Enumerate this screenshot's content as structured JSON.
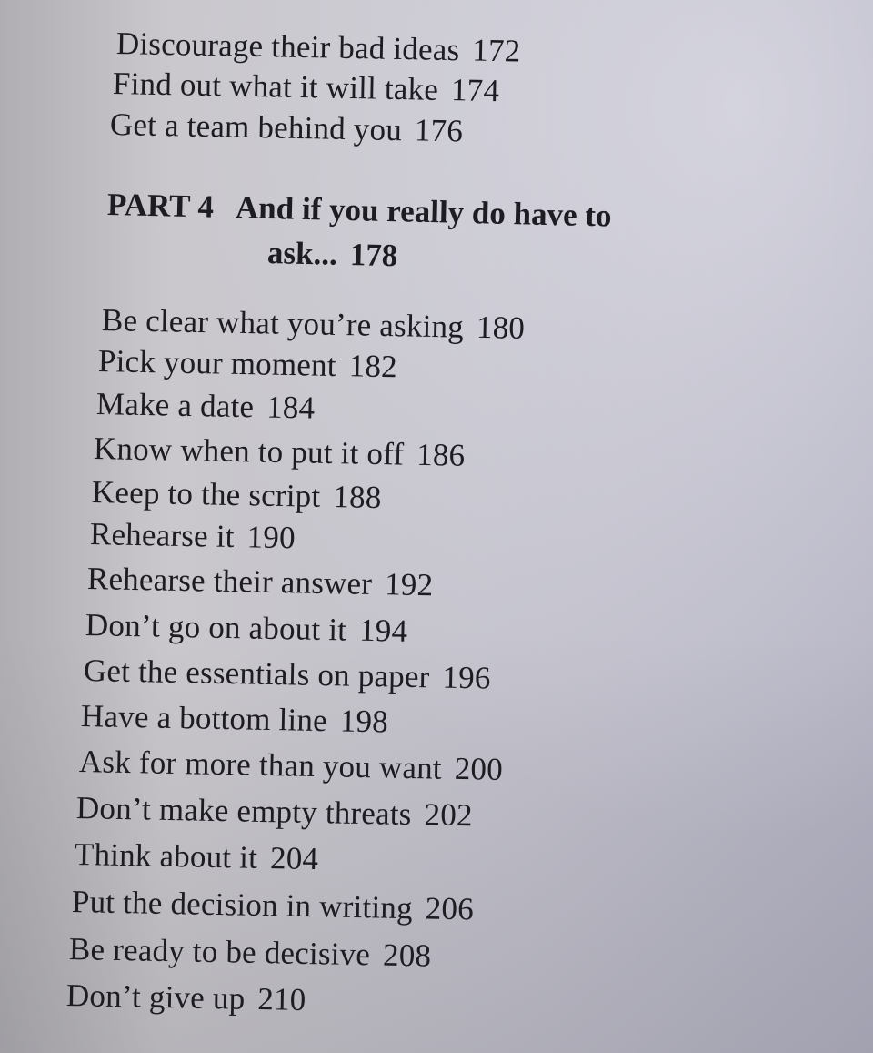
{
  "previous_entries": [
    {
      "title": "Discourage their bad ideas",
      "page": "172"
    },
    {
      "title": "Find out what it will take",
      "page": "174"
    },
    {
      "title": "Get a team behind you",
      "page": "176"
    }
  ],
  "part": {
    "number": "PART 4",
    "title_line1": "And if you really do have to",
    "title_line2": "ask...",
    "page": "178"
  },
  "entries": [
    {
      "title": "Be clear what you’re asking",
      "page": "180"
    },
    {
      "title": "Pick your moment",
      "page": "182"
    },
    {
      "title": "Make a date",
      "page": "184"
    },
    {
      "title": "Know when to put it off",
      "page": "186"
    },
    {
      "title": "Keep to the script",
      "page": "188"
    },
    {
      "title": "Rehearse it",
      "page": "190"
    },
    {
      "title": "Rehearse their answer",
      "page": "192"
    },
    {
      "title": "Don’t go on about it",
      "page": "194"
    },
    {
      "title": "Get the essentials on paper",
      "page": "196"
    },
    {
      "title": "Have a bottom line",
      "page": "198"
    },
    {
      "title": "Ask for more than you want",
      "page": "200"
    },
    {
      "title": "Don’t make empty threats",
      "page": "202"
    },
    {
      "title": "Think about it",
      "page": "204"
    },
    {
      "title": "Put the decision in writing",
      "page": "206"
    },
    {
      "title": "Be ready to be decisive",
      "page": "208"
    },
    {
      "title": "Don’t give up",
      "page": "210"
    }
  ]
}
